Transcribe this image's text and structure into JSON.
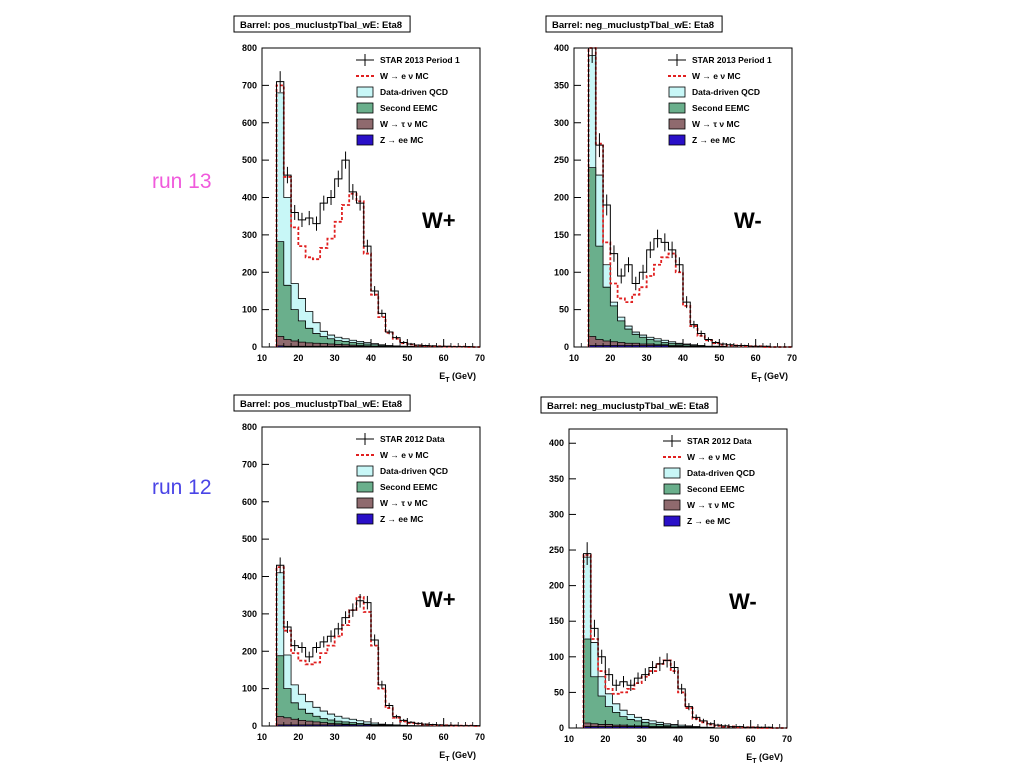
{
  "side_labels": [
    {
      "text": "run 13",
      "color": "#f05adc"
    },
    {
      "text": "run 12",
      "color": "#4a44e6"
    }
  ],
  "legend_labels": {
    "signal_mc": "W → e ν MC",
    "qcd": "Data-driven QCD",
    "eemc": "Second EEMC",
    "tau": "W → τ ν MC",
    "zee": "Z → ee MC"
  },
  "colors": {
    "data": "#000000",
    "signal_mc": "#e02020",
    "qcd": "#c8f7f7",
    "eemc": "#6aaf8c",
    "tau": "#8f6a6e",
    "zee": "#2a10c8"
  },
  "chart_data": [
    {
      "type": "histogram",
      "title": "Barrel: pos_muclustpTbal_wE: Eta8",
      "xlabel": "E_T (GeV)",
      "xlim": [
        10,
        70
      ],
      "ylim": [
        0,
        800
      ],
      "xticks": [
        10,
        20,
        30,
        40,
        50,
        60,
        70
      ],
      "yticks": [
        0,
        100,
        200,
        300,
        400,
        500,
        600,
        700,
        800
      ],
      "big_label": "W+",
      "data_label": "STAR 2013 Period 1",
      "bin_edges": [
        14,
        16,
        18,
        20,
        22,
        24,
        26,
        28,
        30,
        32,
        34,
        36,
        38,
        40,
        42,
        44,
        46,
        48,
        50,
        52,
        54,
        56,
        58,
        60,
        62,
        64,
        66,
        68,
        70
      ],
      "series": [
        {
          "name": "STAR 2013 Period 1",
          "role": "data",
          "values": [
            710,
            460,
            360,
            340,
            345,
            330,
            385,
            400,
            450,
            500,
            415,
            385,
            270,
            150,
            90,
            40,
            25,
            12,
            8,
            5,
            4,
            3,
            2,
            2,
            1,
            1,
            1,
            0
          ],
          "errors": [
            28,
            22,
            20,
            19,
            19,
            19,
            20,
            20,
            22,
            23,
            21,
            20,
            17,
            13,
            10,
            6,
            5,
            4,
            3,
            2,
            2,
            2,
            1,
            1,
            1,
            1,
            1,
            0
          ]
        },
        {
          "name": "W → e ν MC",
          "role": "signal",
          "values": [
            700,
            455,
            320,
            270,
            240,
            235,
            265,
            290,
            335,
            380,
            410,
            390,
            250,
            140,
            80,
            38,
            22,
            10,
            7,
            4,
            3,
            2,
            2,
            1,
            1,
            1,
            0,
            0
          ]
        },
        {
          "name": "Data-driven QCD",
          "role": "qcd",
          "values": [
            680,
            400,
            170,
            130,
            95,
            65,
            42,
            32,
            26,
            22,
            18,
            15,
            12,
            9,
            6,
            4,
            3,
            2,
            2,
            1,
            1,
            1,
            0,
            0,
            0,
            0,
            0,
            0
          ]
        },
        {
          "name": "Second EEMC",
          "role": "eemc",
          "values": [
            282,
            165,
            100,
            70,
            50,
            36,
            28,
            22,
            17,
            15,
            12,
            10,
            8,
            6,
            4,
            3,
            2,
            2,
            1,
            1,
            1,
            0,
            0,
            0,
            0,
            0,
            0,
            0
          ]
        },
        {
          "name": "W → τ ν MC",
          "role": "tau",
          "values": [
            28,
            20,
            16,
            13,
            11,
            10,
            9,
            8,
            7,
            6,
            5,
            4,
            3,
            2,
            2,
            1,
            1,
            1,
            0,
            0,
            0,
            0,
            0,
            0,
            0,
            0,
            0,
            0
          ]
        },
        {
          "name": "Z → ee MC",
          "role": "zee",
          "values": [
            3,
            2,
            2,
            2,
            2,
            2,
            2,
            2,
            2,
            2,
            2,
            2,
            2,
            1,
            1,
            1,
            1,
            0,
            0,
            0,
            0,
            0,
            0,
            0,
            0,
            0,
            0,
            0
          ]
        }
      ]
    },
    {
      "type": "histogram",
      "title": "Barrel: neg_muclustpTbal_wE: Eta8",
      "xlabel": "E_T (GeV)",
      "xlim": [
        10,
        70
      ],
      "ylim": [
        0,
        400
      ],
      "xticks": [
        10,
        20,
        30,
        40,
        50,
        60,
        70
      ],
      "yticks": [
        0,
        50,
        100,
        150,
        200,
        250,
        300,
        350,
        400
      ],
      "big_label": "W-",
      "data_label": "STAR 2013 Period 1",
      "bin_edges": [
        14,
        16,
        18,
        20,
        22,
        24,
        26,
        28,
        30,
        32,
        34,
        36,
        38,
        40,
        42,
        44,
        46,
        48,
        50,
        52,
        54,
        56,
        58,
        60,
        62,
        64,
        66,
        68,
        70
      ],
      "series": [
        {
          "name": "STAR 2013 Period 1",
          "role": "data",
          "values": [
            400,
            270,
            190,
            125,
            95,
            110,
            85,
            100,
            130,
            145,
            140,
            130,
            110,
            60,
            30,
            18,
            10,
            6,
            4,
            3,
            2,
            2,
            1,
            1,
            1,
            0,
            0,
            0
          ],
          "errors": [
            20,
            16,
            14,
            11,
            10,
            10,
            9,
            10,
            11,
            12,
            12,
            11,
            10,
            8,
            5,
            4,
            3,
            2,
            2,
            2,
            1,
            1,
            1,
            1,
            1,
            0,
            0,
            0
          ]
        },
        {
          "name": "W → e ν MC",
          "role": "signal",
          "values": [
            400,
            272,
            140,
            85,
            65,
            60,
            70,
            80,
            95,
            110,
            120,
            125,
            100,
            55,
            28,
            15,
            9,
            5,
            3,
            2,
            2,
            1,
            1,
            1,
            0,
            0,
            0,
            0
          ]
        },
        {
          "name": "Data-driven QCD",
          "role": "qcd",
          "values": [
            390,
            230,
            110,
            60,
            40,
            28,
            20,
            16,
            13,
            11,
            9,
            7,
            5,
            4,
            3,
            2,
            1,
            1,
            1,
            0,
            0,
            0,
            0,
            0,
            0,
            0,
            0,
            0
          ]
        },
        {
          "name": "Second EEMC",
          "role": "eemc",
          "values": [
            240,
            135,
            80,
            55,
            35,
            24,
            17,
            13,
            10,
            8,
            6,
            5,
            4,
            3,
            2,
            2,
            1,
            1,
            0,
            0,
            0,
            0,
            0,
            0,
            0,
            0,
            0,
            0
          ]
        },
        {
          "name": "W → τ ν MC",
          "role": "tau",
          "values": [
            14,
            10,
            8,
            7,
            6,
            5,
            5,
            4,
            4,
            3,
            3,
            2,
            2,
            1,
            1,
            1,
            0,
            0,
            0,
            0,
            0,
            0,
            0,
            0,
            0,
            0,
            0,
            0
          ]
        },
        {
          "name": "Z → ee MC",
          "role": "zee",
          "values": [
            2,
            2,
            2,
            2,
            2,
            2,
            2,
            2,
            2,
            2,
            2,
            1,
            1,
            1,
            1,
            0,
            0,
            0,
            0,
            0,
            0,
            0,
            0,
            0,
            0,
            0,
            0,
            0
          ]
        }
      ]
    },
    {
      "type": "histogram",
      "title": "Barrel: pos_muclustpTbal_wE: Eta8",
      "xlabel": "E_T (GeV)",
      "xlim": [
        10,
        70
      ],
      "ylim": [
        0,
        800
      ],
      "xticks": [
        10,
        20,
        30,
        40,
        50,
        60,
        70
      ],
      "yticks": [
        0,
        100,
        200,
        300,
        400,
        500,
        600,
        700,
        800
      ],
      "big_label": "W+",
      "data_label": "STAR 2012 Data",
      "bin_edges": [
        14,
        16,
        18,
        20,
        22,
        24,
        26,
        28,
        30,
        32,
        34,
        36,
        38,
        40,
        42,
        44,
        46,
        48,
        50,
        52,
        54,
        56,
        58,
        60,
        62,
        64,
        66,
        68,
        70
      ],
      "series": [
        {
          "name": "STAR 2012 Data",
          "role": "data",
          "values": [
            430,
            265,
            215,
            210,
            185,
            210,
            225,
            240,
            260,
            290,
            310,
            335,
            330,
            230,
            110,
            55,
            25,
            15,
            10,
            7,
            5,
            4,
            3,
            2,
            2,
            1,
            1,
            1
          ],
          "errors": [
            21,
            16,
            15,
            14,
            14,
            14,
            15,
            16,
            16,
            17,
            18,
            18,
            18,
            15,
            11,
            7,
            5,
            4,
            3,
            3,
            2,
            2,
            2,
            1,
            1,
            1,
            1,
            1
          ]
        },
        {
          "name": "W → e ν MC",
          "role": "signal",
          "values": [
            425,
            255,
            195,
            175,
            165,
            170,
            195,
            215,
            240,
            270,
            310,
            345,
            305,
            215,
            100,
            48,
            22,
            12,
            8,
            6,
            4,
            3,
            2,
            2,
            1,
            1,
            1,
            0
          ]
        },
        {
          "name": "Data-driven QCD",
          "role": "qcd",
          "values": [
            410,
            190,
            110,
            85,
            65,
            50,
            40,
            32,
            26,
            21,
            18,
            14,
            11,
            8,
            5,
            4,
            3,
            2,
            1,
            1,
            1,
            0,
            0,
            0,
            0,
            0,
            0,
            0
          ]
        },
        {
          "name": "Second EEMC",
          "role": "eemc",
          "values": [
            188,
            100,
            62,
            45,
            34,
            26,
            20,
            16,
            13,
            11,
            9,
            7,
            5,
            4,
            3,
            2,
            1,
            1,
            1,
            0,
            0,
            0,
            0,
            0,
            0,
            0,
            0,
            0
          ]
        },
        {
          "name": "W → τ ν MC",
          "role": "tau",
          "values": [
            25,
            22,
            18,
            15,
            13,
            11,
            9,
            7,
            6,
            5,
            4,
            3,
            3,
            2,
            2,
            1,
            1,
            0,
            0,
            0,
            0,
            0,
            0,
            0,
            0,
            0,
            0,
            0
          ]
        },
        {
          "name": "Z → ee MC",
          "role": "zee",
          "values": [
            3,
            3,
            3,
            3,
            3,
            3,
            3,
            3,
            3,
            3,
            3,
            3,
            3,
            2,
            2,
            1,
            1,
            1,
            0,
            0,
            0,
            0,
            0,
            0,
            0,
            0,
            0,
            0
          ]
        }
      ]
    },
    {
      "type": "histogram",
      "title": "Barrel: neg_muclustpTbal_wE: Eta8",
      "xlabel": "E_T (GeV)",
      "xlim": [
        10,
        70
      ],
      "ylim": [
        0,
        420
      ],
      "xticks": [
        10,
        20,
        30,
        40,
        50,
        60,
        70
      ],
      "yticks": [
        0,
        50,
        100,
        150,
        200,
        250,
        300,
        350,
        400
      ],
      "big_label": "W-",
      "data_label": "STAR 2012 Data",
      "bin_edges": [
        14,
        16,
        18,
        20,
        22,
        24,
        26,
        28,
        30,
        32,
        34,
        36,
        38,
        40,
        42,
        44,
        46,
        48,
        50,
        52,
        54,
        56,
        58,
        60,
        62,
        64,
        66,
        68,
        70
      ],
      "series": [
        {
          "name": "STAR 2012 Data",
          "role": "data",
          "values": [
            245,
            140,
            100,
            75,
            60,
            65,
            60,
            70,
            75,
            85,
            90,
            95,
            85,
            55,
            30,
            15,
            10,
            6,
            4,
            3,
            2,
            2,
            1,
            1,
            1,
            1,
            0,
            0
          ],
          "errors": [
            16,
            12,
            10,
            9,
            8,
            8,
            8,
            8,
            9,
            9,
            10,
            10,
            9,
            7,
            5,
            4,
            3,
            2,
            2,
            2,
            1,
            1,
            1,
            1,
            1,
            1,
            0,
            0
          ]
        },
        {
          "name": "W → e ν MC",
          "role": "signal",
          "values": [
            243,
            125,
            80,
            55,
            48,
            50,
            55,
            63,
            72,
            80,
            90,
            95,
            80,
            50,
            28,
            13,
            8,
            5,
            3,
            2,
            2,
            1,
            1,
            1,
            0,
            0,
            0,
            0
          ]
        },
        {
          "name": "Data-driven QCD",
          "role": "qcd",
          "values": [
            240,
            120,
            72,
            48,
            34,
            25,
            19,
            15,
            12,
            10,
            8,
            6,
            5,
            4,
            3,
            2,
            1,
            1,
            0,
            0,
            0,
            0,
            0,
            0,
            0,
            0,
            0,
            0
          ]
        },
        {
          "name": "Second EEMC",
          "role": "eemc",
          "values": [
            125,
            72,
            45,
            30,
            22,
            16,
            12,
            10,
            8,
            6,
            5,
            4,
            3,
            2,
            2,
            1,
            1,
            0,
            0,
            0,
            0,
            0,
            0,
            0,
            0,
            0,
            0,
            0
          ]
        },
        {
          "name": "W → τ ν MC",
          "role": "tau",
          "values": [
            7,
            6,
            5,
            5,
            4,
            4,
            3,
            3,
            3,
            2,
            2,
            2,
            1,
            1,
            1,
            0,
            0,
            0,
            0,
            0,
            0,
            0,
            0,
            0,
            0,
            0,
            0,
            0
          ]
        },
        {
          "name": "Z → ee MC",
          "role": "zee",
          "values": [
            2,
            2,
            2,
            2,
            2,
            2,
            2,
            2,
            2,
            1,
            1,
            1,
            1,
            1,
            0,
            0,
            0,
            0,
            0,
            0,
            0,
            0,
            0,
            0,
            0,
            0,
            0,
            0
          ]
        }
      ]
    }
  ]
}
